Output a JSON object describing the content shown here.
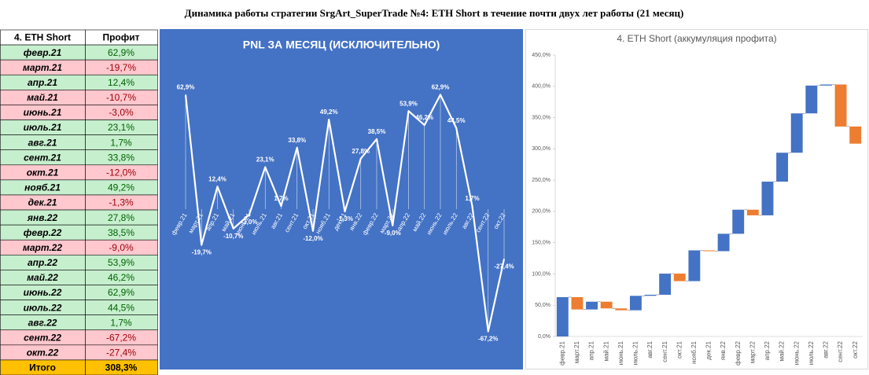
{
  "title": "Динамика работы стратегии SrgArt_SuperTrade №4: ETH Short в течение почти двух лет работы (21 месяц)",
  "table": {
    "header": [
      "4. ETH Short",
      "Профит"
    ],
    "rows": [
      [
        "февр.21",
        "62,9%"
      ],
      [
        "март.21",
        "-19,7%"
      ],
      [
        "апр.21",
        "12,4%"
      ],
      [
        "май.21",
        "-10,7%"
      ],
      [
        "июнь.21",
        "-3,0%"
      ],
      [
        "июль.21",
        "23,1%"
      ],
      [
        "авг.21",
        "1,7%"
      ],
      [
        "сент.21",
        "33,8%"
      ],
      [
        "окт.21",
        "-12,0%"
      ],
      [
        "нояб.21",
        "49,2%"
      ],
      [
        "дек.21",
        "-1,3%"
      ],
      [
        "янв.22",
        "27,8%"
      ],
      [
        "февр.22",
        "38,5%"
      ],
      [
        "март.22",
        "-9,0%"
      ],
      [
        "апр.22",
        "53,9%"
      ],
      [
        "май.22",
        "46,2%"
      ],
      [
        "июнь.22",
        "62,9%"
      ],
      [
        "июль.22",
        "44,5%"
      ],
      [
        "авг.22",
        "1,7%"
      ],
      [
        "сент.22",
        "-67,2%"
      ],
      [
        "окт.22",
        "-27,4%"
      ]
    ],
    "total": [
      "Итого",
      "308,3%"
    ]
  },
  "chart_data": [
    {
      "type": "line",
      "title": "PNL ЗА МЕСЯЦ (ИСКЛЮЧИТЕЛЬНО)",
      "color": "#ffffff",
      "ylim": [
        -70,
        70
      ],
      "categories": [
        "февр.21",
        "март.21",
        "апр.21",
        "май.21",
        "июнь.21",
        "июль.21",
        "авг.21",
        "сент.21",
        "окт.21",
        "нояб.21",
        "дек.21",
        "янв.22",
        "февр.22",
        "март.22",
        "апр.22",
        "май.22",
        "июнь.22",
        "июль.22",
        "авг.22",
        "сент.22",
        "окт.22"
      ],
      "values": [
        62.9,
        -19.7,
        12.4,
        -10.7,
        -3.0,
        23.1,
        1.7,
        33.8,
        -12.0,
        49.2,
        -1.3,
        27.8,
        38.5,
        -9.0,
        53.9,
        46.2,
        62.9,
        44.5,
        1.7,
        -67.2,
        -27.4
      ],
      "value_labels": [
        "62,9%",
        "-19,7%",
        "12,4%",
        "-10,7%",
        "-3,0%",
        "23,1%",
        "1,7%",
        "33,8%",
        "-12,0%",
        "49,2%",
        "-1,3%",
        "27,8%",
        "38,5%",
        "-9,0%",
        "53,9%",
        "46,2%",
        "62,9%",
        "44,5%",
        "1,7%",
        "-67,2%",
        "-27,4%"
      ]
    },
    {
      "type": "waterfall",
      "title": "4. ETH Short (аккумуляция профита)",
      "up_color": "#4472c4",
      "down_color": "#ed7d31",
      "ylim": [
        0,
        450
      ],
      "yticks": [
        {
          "value": 0,
          "label": "0,0%"
        },
        {
          "value": 50,
          "label": "50,0%"
        },
        {
          "value": 100,
          "label": "100,0%"
        },
        {
          "value": 150,
          "label": "150,0%"
        },
        {
          "value": 200,
          "label": "200,0%"
        },
        {
          "value": 250,
          "label": "250,0%"
        },
        {
          "value": 300,
          "label": "300,0%"
        },
        {
          "value": 350,
          "label": "350,0%"
        },
        {
          "value": 400,
          "label": "400,0%"
        },
        {
          "value": 450,
          "label": "450,0%"
        }
      ],
      "categories": [
        "февр.21",
        "март.21",
        "апр.21",
        "май.21",
        "июнь.21",
        "июль.21",
        "авг.21",
        "сент.21",
        "окт.21",
        "нояб.21",
        "дек.21",
        "янв.22",
        "февр.22",
        "март.22",
        "апр.22",
        "май.22",
        "июнь.22",
        "июль.22",
        "авг.22",
        "сент.22",
        "окт.22"
      ],
      "values": [
        62.9,
        -19.7,
        12.4,
        -10.7,
        -3.0,
        23.1,
        1.7,
        33.8,
        -12.0,
        49.2,
        -1.3,
        27.8,
        38.5,
        -9.0,
        53.9,
        46.2,
        62.9,
        44.5,
        1.7,
        -67.2,
        -27.4
      ]
    }
  ]
}
